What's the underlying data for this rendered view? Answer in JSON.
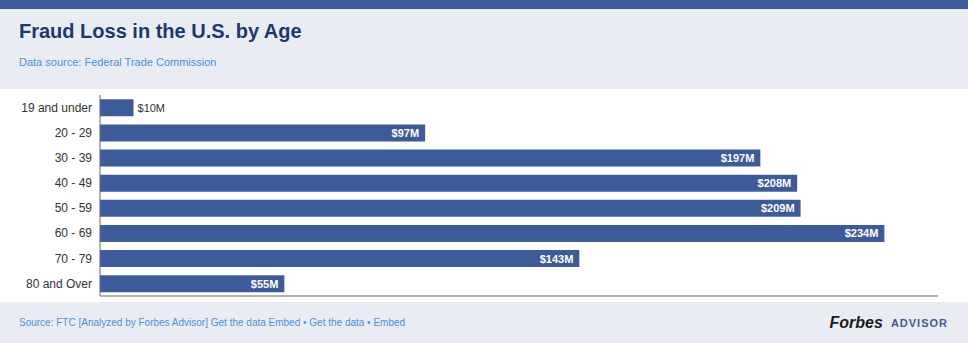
{
  "chart_data": {
    "type": "bar",
    "orientation": "horizontal",
    "title": "Fraud Loss in the U.S. by Age",
    "subtitle": "Data source: Federal Trade Commission",
    "categories": [
      "19 and under",
      "20 - 29",
      "30 - 39",
      "40 - 49",
      "50 - 59",
      "60 - 69",
      "70 - 79",
      "80 and Over"
    ],
    "values": [
      10,
      97,
      197,
      208,
      209,
      234,
      143,
      55
    ],
    "value_labels": [
      "$10M",
      "$97M",
      "$197M",
      "$208M",
      "$209M",
      "$234M",
      "$143M",
      "$55M"
    ],
    "data_labels": true,
    "color": "#3d5a99",
    "xlim": [
      0,
      250
    ],
    "grid": false,
    "tick_labels": "y",
    "annotations": [
      "Source: FTC [Analyzed by Forbes Advisor] Get the data Embed • Get the data • Embed",
      "Forbes",
      "ADVISOR"
    ]
  }
}
